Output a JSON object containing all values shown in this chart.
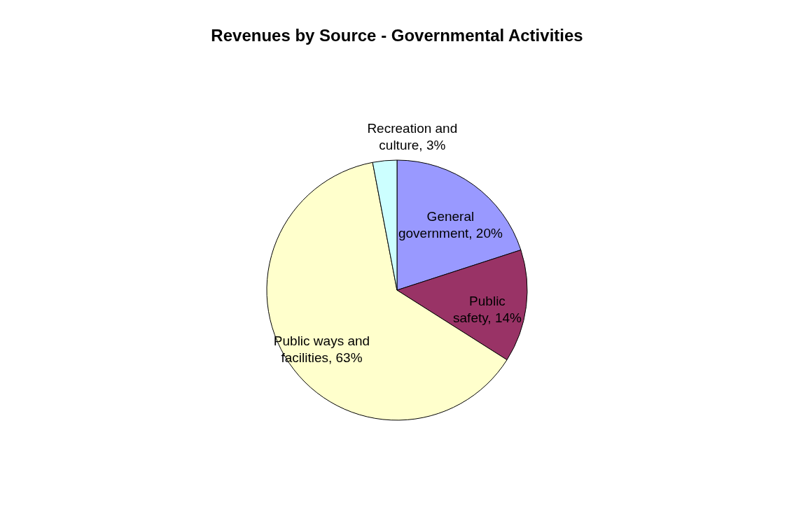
{
  "chart_data": {
    "type": "pie",
    "title": "Revenues by Source - Governmental Activities",
    "categories": [
      "General government",
      "Public safety",
      "Public ways and facilities",
      "Recreation and culture"
    ],
    "values": [
      20,
      14,
      63,
      3
    ],
    "value_labels": [
      "20%",
      "14%",
      "63%",
      "3%"
    ],
    "colors": [
      "#9999ff",
      "#993366",
      "#ffffcc",
      "#ccffff"
    ],
    "legend": false
  }
}
